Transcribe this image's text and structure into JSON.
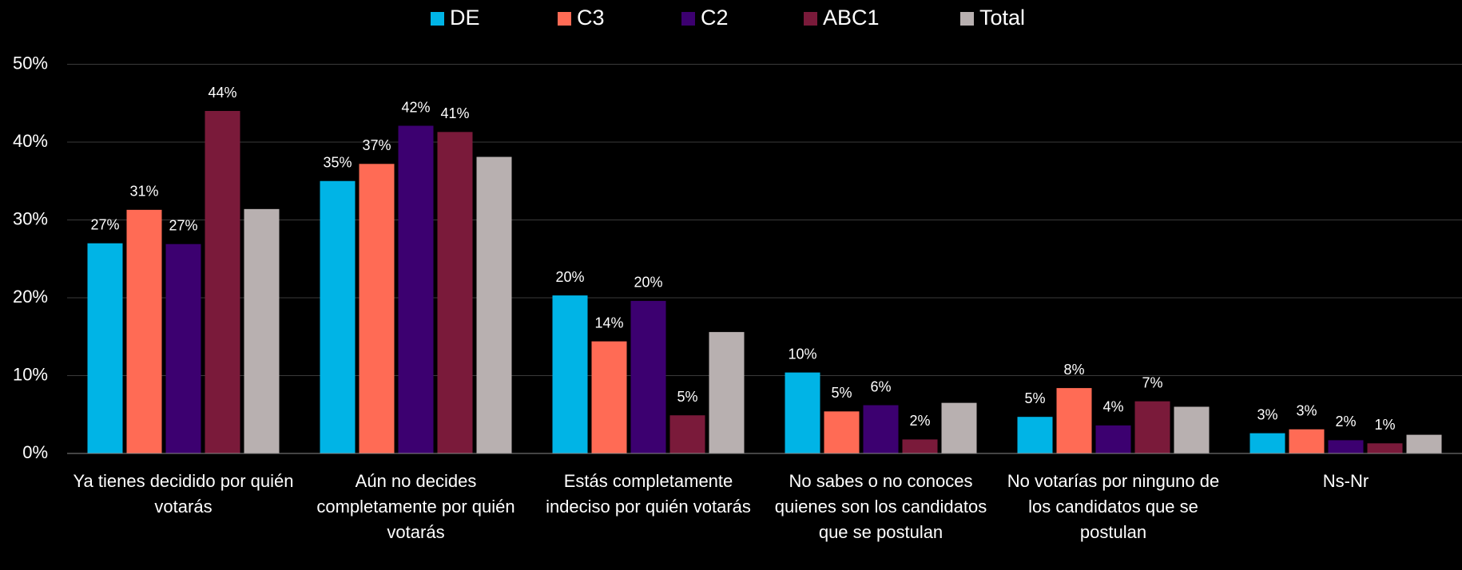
{
  "chart_data": {
    "type": "bar",
    "categories": [
      "Ya tienes decidido por quién votarás",
      "Aún no decides completamente por quién votarás",
      "Estás completamente indeciso por quién votarás",
      "No sabes o no conoces quienes son los candidatos que se postulan",
      "No votarías por ninguno de los candidatos que se postulan",
      "Ns-Nr"
    ],
    "series": [
      {
        "name": "DE",
        "color": "#00b4e6",
        "values": [
          27,
          35,
          20.3,
          10.4,
          4.7,
          2.6
        ],
        "value_labels": [
          "27%",
          "35%",
          "20%",
          "10%",
          "5%",
          "3%"
        ]
      },
      {
        "name": "C3",
        "color": "#ff6b55",
        "values": [
          31.3,
          37.2,
          14.4,
          5.4,
          8.4,
          3.1
        ],
        "value_labels": [
          "31%",
          "37%",
          "14%",
          "5%",
          "8%",
          "3%"
        ]
      },
      {
        "name": "C2",
        "color": "#3c0070",
        "values": [
          26.9,
          42.1,
          19.6,
          6.2,
          3.6,
          1.7
        ],
        "value_labels": [
          "27%",
          "42%",
          "20%",
          "6%",
          "4%",
          "2%"
        ]
      },
      {
        "name": "ABC1",
        "color": "#7a1a3a",
        "values": [
          44,
          41.3,
          4.9,
          1.8,
          6.7,
          1.3
        ],
        "value_labels": [
          "44%",
          "41%",
          "5%",
          "2%",
          "7%",
          "1%"
        ]
      },
      {
        "name": "Total",
        "color": "#b8b0b0",
        "values": [
          31.4,
          38.1,
          15.6,
          6.5,
          6.0,
          2.4
        ]
      }
    ],
    "ylim": [
      0,
      50
    ],
    "yticks": [
      {
        "value": 0,
        "label": "0%"
      },
      {
        "value": 10,
        "label": "10%"
      },
      {
        "value": 20,
        "label": "20%"
      },
      {
        "value": 30,
        "label": "30%"
      },
      {
        "value": 40,
        "label": "40%"
      },
      {
        "value": 50,
        "label": "50%"
      }
    ],
    "grid": true,
    "legend": "top"
  }
}
